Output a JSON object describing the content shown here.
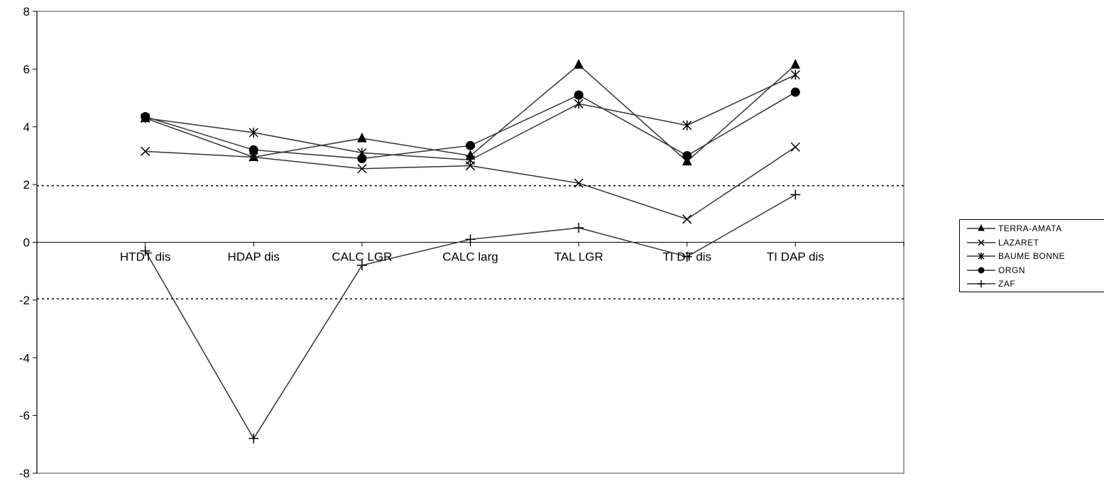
{
  "chart_data": {
    "type": "line",
    "categories": [
      "HTDT dis",
      "HDAP dis",
      "CALC LGR",
      "CALC larg",
      "TAL LGR",
      "TI DT dis",
      "TI DAP dis"
    ],
    "ylim": [
      -8,
      8
    ],
    "yticks": [
      -8,
      -6,
      -4,
      -2,
      0,
      2,
      4,
      6,
      8
    ],
    "reference_lines": [
      1.96,
      -1.96
    ],
    "grid": false,
    "legend_position": "right",
    "series": [
      {
        "name": "TERRA-AMATA",
        "marker": "triangle",
        "values": [
          4.3,
          2.95,
          3.6,
          3.0,
          6.15,
          2.8,
          6.15
        ]
      },
      {
        "name": "LAZARET",
        "marker": "x",
        "values": [
          3.15,
          2.95,
          2.55,
          2.65,
          2.05,
          0.8,
          3.3
        ]
      },
      {
        "name": "BAUME BONNE",
        "marker": "asterisk",
        "values": [
          4.3,
          3.8,
          3.1,
          2.85,
          4.8,
          4.05,
          5.8
        ]
      },
      {
        "name": "ORGN",
        "marker": "circle",
        "values": [
          4.35,
          3.2,
          2.9,
          3.35,
          5.1,
          3.0,
          5.2
        ]
      },
      {
        "name": "ZAF",
        "marker": "plus",
        "values": [
          -0.3,
          -6.8,
          -0.8,
          0.1,
          0.5,
          -0.5,
          1.65
        ]
      }
    ]
  }
}
